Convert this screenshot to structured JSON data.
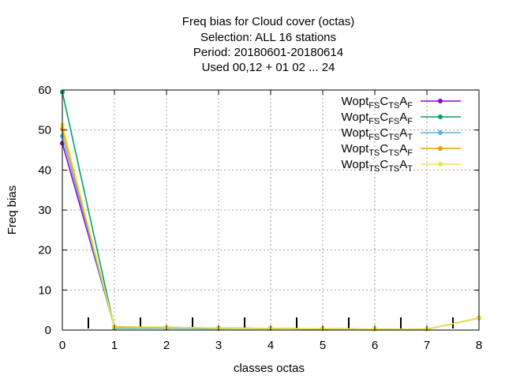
{
  "chart_data": {
    "type": "line",
    "title_lines": [
      "Freq bias  for Cloud cover (octas)",
      "Selection: ALL     16 stations",
      "Period: 20180601-20180614",
      "Used  00,12  + 01 02 ... 24"
    ],
    "xlabel": "classes octas",
    "ylabel": "Freq bias",
    "xlim": [
      0,
      8
    ],
    "ylim": [
      0,
      60
    ],
    "xticks": [
      0,
      1,
      2,
      3,
      4,
      5,
      6,
      7,
      8
    ],
    "yticks": [
      0,
      10,
      20,
      30,
      40,
      50,
      60
    ],
    "grid": true,
    "legend_position": "top-right",
    "bin_markers_x": [
      0.5,
      1.5,
      2.5,
      3.5,
      4.5,
      5.5,
      6.5,
      7.5
    ],
    "series": [
      {
        "label_parts": [
          [
            "Wopt",
            ""
          ],
          [
            "FS",
            "sub"
          ],
          [
            "C",
            ""
          ],
          [
            "TS",
            "sub"
          ],
          [
            "A",
            ""
          ],
          [
            "F",
            "sub"
          ]
        ],
        "color": "#9400d3",
        "x": [
          0,
          1,
          2,
          3,
          4,
          5,
          6,
          7,
          8
        ],
        "y": [
          46.7,
          0.8,
          0.6,
          0.5,
          0.4,
          0.3,
          0.2,
          0.2,
          3.0
        ]
      },
      {
        "label_parts": [
          [
            "Wopt",
            ""
          ],
          [
            "FS",
            "sub"
          ],
          [
            "C",
            ""
          ],
          [
            "FS",
            "sub"
          ],
          [
            "A",
            ""
          ],
          [
            "F",
            "sub"
          ]
        ],
        "color": "#009e73",
        "x": [
          0,
          1,
          2,
          3,
          4,
          5,
          6,
          7,
          8
        ],
        "y": [
          59.5,
          0.5,
          0.5,
          0.4,
          0.4,
          0.3,
          0.2,
          0.2,
          3.0
        ]
      },
      {
        "label_parts": [
          [
            "Wopt",
            ""
          ],
          [
            "FS",
            "sub"
          ],
          [
            "C",
            ""
          ],
          [
            "TS",
            "sub"
          ],
          [
            "A",
            ""
          ],
          [
            "T",
            "sub"
          ]
        ],
        "color": "#56b4e9",
        "x": [
          0,
          1,
          2,
          3,
          4,
          5,
          6,
          7,
          8
        ],
        "y": [
          48.5,
          0.7,
          0.6,
          0.5,
          0.4,
          0.3,
          0.2,
          0.2,
          3.0
        ]
      },
      {
        "label_parts": [
          [
            "Wopt",
            ""
          ],
          [
            "TS",
            "sub"
          ],
          [
            "C",
            ""
          ],
          [
            "TS",
            "sub"
          ],
          [
            "A",
            ""
          ],
          [
            "F",
            "sub"
          ]
        ],
        "color": "#e69f00",
        "x": [
          0,
          1,
          2,
          3,
          4,
          5,
          6,
          7,
          8
        ],
        "y": [
          50.2,
          0.8,
          0.7,
          0.5,
          0.4,
          0.3,
          0.2,
          0.2,
          3.0
        ]
      },
      {
        "label_parts": [
          [
            "Wopt",
            ""
          ],
          [
            "TS",
            "sub"
          ],
          [
            "C",
            ""
          ],
          [
            "TS",
            "sub"
          ],
          [
            "A",
            ""
          ],
          [
            "T",
            "sub"
          ]
        ],
        "color": "#f0e442",
        "x": [
          0,
          1,
          2,
          3,
          4,
          5,
          6,
          7,
          8
        ],
        "y": [
          51.3,
          0.7,
          0.7,
          0.5,
          0.4,
          0.3,
          0.2,
          0.2,
          3.0
        ]
      }
    ]
  }
}
